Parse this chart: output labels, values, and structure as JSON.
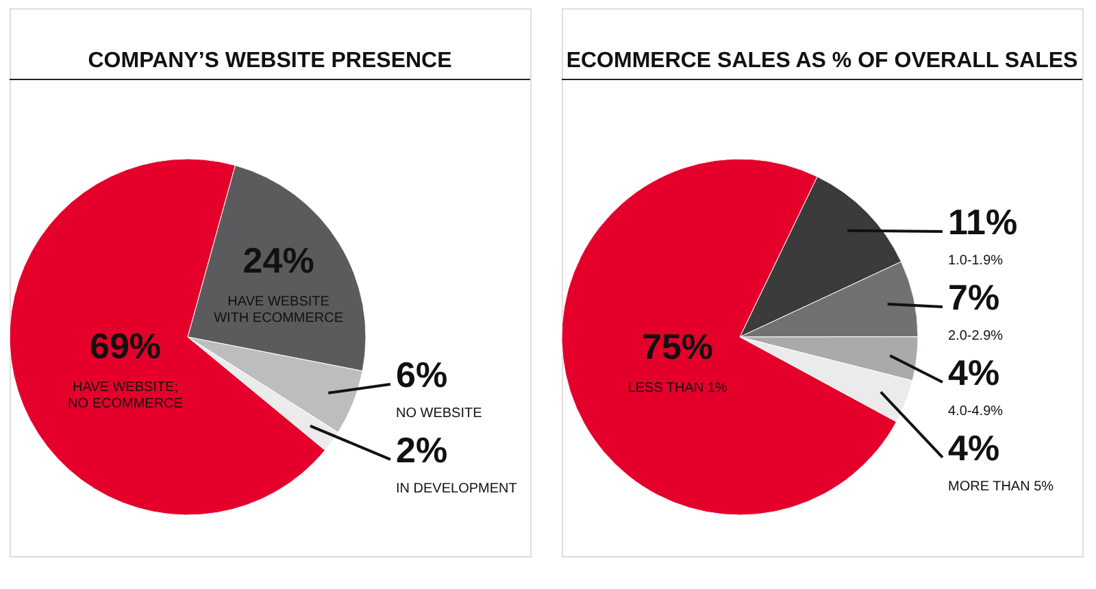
{
  "chart_data": [
    {
      "type": "pie",
      "title": "COMPANY’S WEBSITE PRESENCE",
      "categories": [
        "HAVE WEBSITE\nWITH ECOMMERCE",
        "NO WEBSITE",
        "IN DEVELOPMENT",
        "HAVE WEBSITE;\nNO ECOMMERCE"
      ],
      "values": [
        24,
        6,
        2,
        69
      ],
      "value_labels": [
        "24%",
        "6%",
        "2%",
        "69%"
      ],
      "colors": [
        "#5b5b5d",
        "#bcbdbf",
        "#ebebec",
        "#e4002b"
      ],
      "legend": false
    },
    {
      "type": "pie",
      "title": "ECOMMERCE SALES AS % OF OVERALL SALES",
      "categories": [
        "1.0-1.9%",
        "2.0-2.9%",
        "4.0-4.9%",
        "MORE THAN 5%",
        "LESS THAN 1%"
      ],
      "values": [
        11,
        7,
        4,
        4,
        75
      ],
      "value_labels": [
        "11%",
        "7%",
        "4%",
        "4%",
        "75%"
      ],
      "colors": [
        "#3b3b3c",
        "#717173",
        "#a9aaac",
        "#ebebec",
        "#e4002b"
      ],
      "legend": false
    }
  ]
}
